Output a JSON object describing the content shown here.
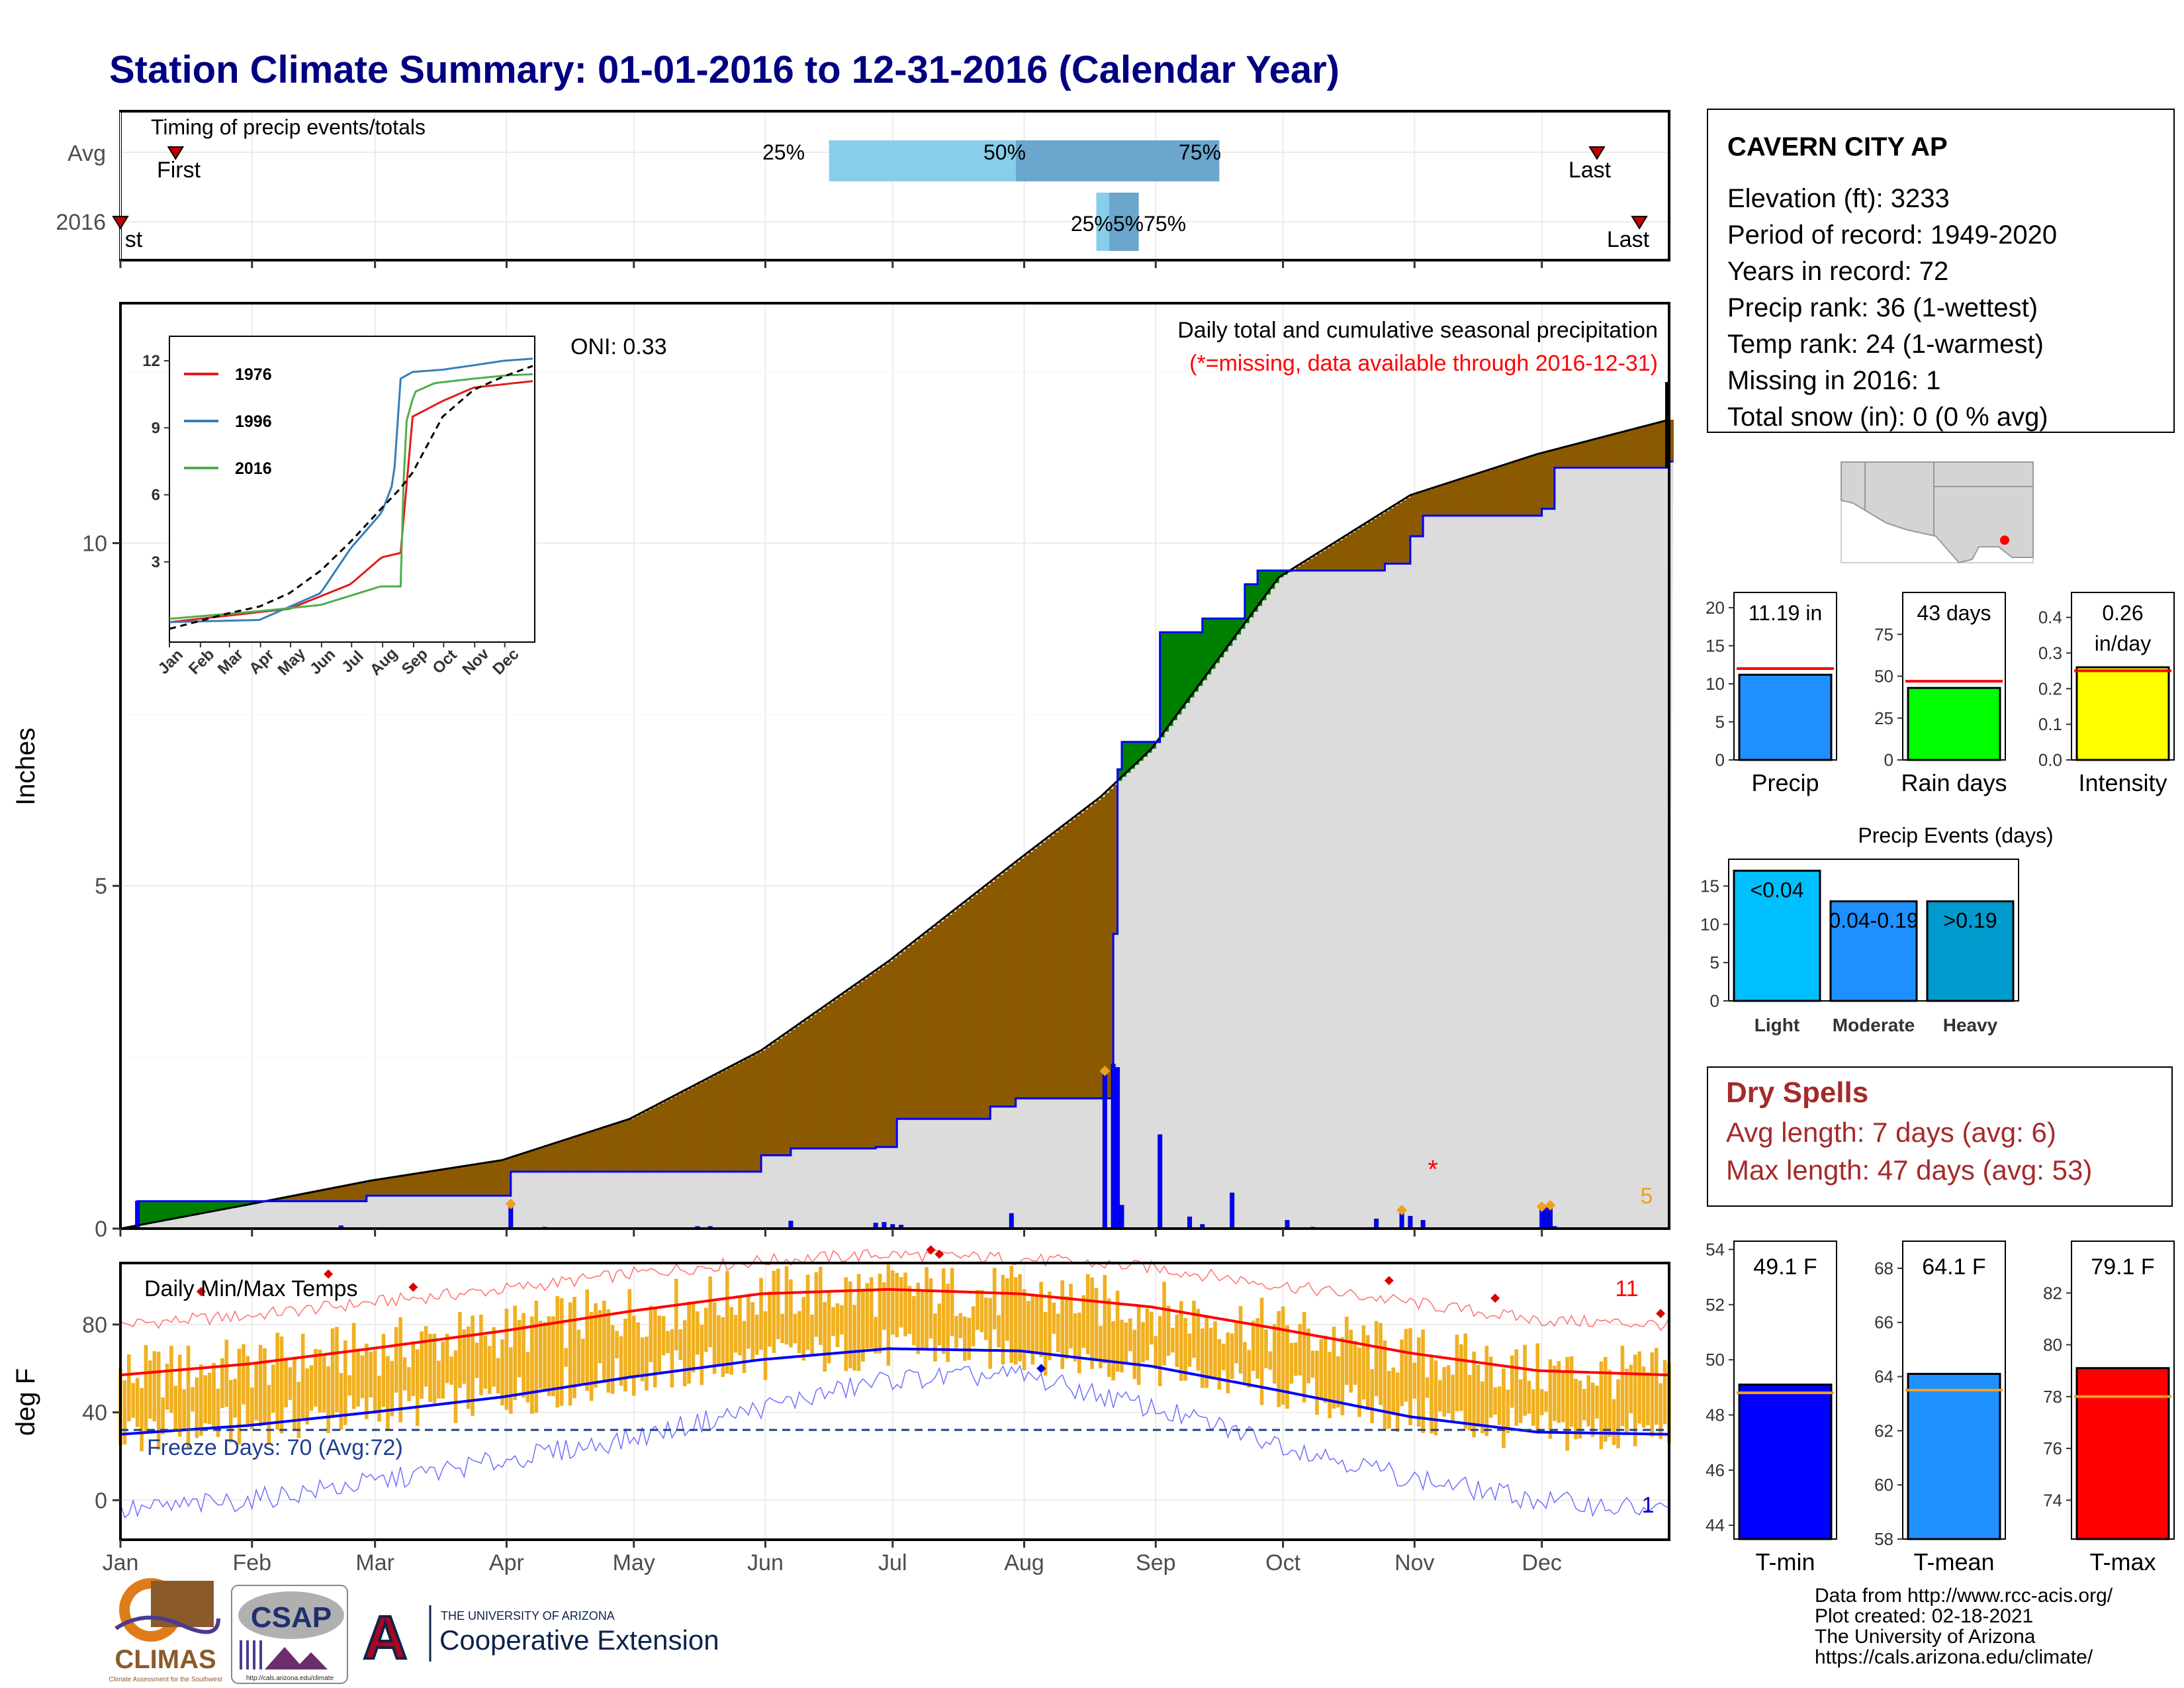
{
  "title": "Station Climate Summary: 01-01-2016 to 12-31-2016 (Calendar Year)",
  "colors": {
    "title": "#000080",
    "brown": "#8B5A00",
    "green": "#008000",
    "gray_fill": "#DCDCDC",
    "blue": "#0000FF",
    "red": "#FF0000",
    "orange": "#F0B020",
    "light_blue": "#87CEEB",
    "mid_blue": "#6BA6CD",
    "yellow": "#FFFF00",
    "lime": "#00FF00",
    "precip_bar": "#1E90FF",
    "dry_spell": "#A52A2A",
    "tmean": "#1E90FF",
    "deep_sky": "#00BFFF",
    "heavy": "#009ACD"
  },
  "timing_panel": {
    "label": "Timing of precip events/totals",
    "rows": [
      "Avg",
      "2016"
    ],
    "avg": {
      "q25_label": "25%",
      "q50_label": "50%",
      "q75_label": "75%",
      "q25_day": 168,
      "q50_day": 212,
      "q75_day": 260,
      "first_label": "First",
      "first_day": 14,
      "last_label": "Last",
      "last_day": 349
    },
    "y2016": {
      "overlap_label": "25%5%75%",
      "q25_day": 231,
      "q50_day": 234,
      "q75_day": 241,
      "first_label": "st",
      "first_day": 1,
      "last_label": "Last",
      "last_day": 359
    }
  },
  "main_panel": {
    "ylabel": "Inches",
    "header": "Daily total and cumulative seasonal precipitation",
    "missing_note": "(*=missing, data available through 2016-12-31)",
    "oni": "ONI: 0.33",
    "missing_marker": "*",
    "corner_count": "5",
    "inset": {
      "legend": [
        "1976",
        "1996",
        "2016"
      ],
      "colors": [
        "#E41A1C",
        "#377EB8",
        "#4DAF4A"
      ],
      "yticks": [
        "3",
        "6",
        "9",
        "12"
      ],
      "xticks": [
        "Jan",
        "Feb",
        "Mar",
        "Apr",
        "May",
        "Jun",
        "Jul",
        "Aug",
        "Sep",
        "Oct",
        "Nov",
        "Dec"
      ]
    }
  },
  "temp_panel": {
    "header": "Daily Min/Max Temps",
    "ylabel": "deg F",
    "freeze_note": "Freeze Days: 70 (Avg:72)",
    "count_top": "11",
    "count_bottom": "1"
  },
  "months": [
    "Jan",
    "Feb",
    "Mar",
    "Apr",
    "May",
    "Jun",
    "Jul",
    "Aug",
    "Sep",
    "Oct",
    "Nov",
    "Dec"
  ],
  "station": {
    "name": "CAVERN CITY AP",
    "lines": [
      "Elevation (ft): 3233",
      "Period of record: 1949-2020",
      "Years in record: 72",
      "Precip rank: 36 (1-wettest)",
      "Temp rank: 24 (1-warmest)",
      "Missing in 2016: 1",
      "Total snow (in): 0 (0 % avg)"
    ]
  },
  "mini_bars": [
    {
      "label": "Precip",
      "value_text": "11.19 in",
      "value": 11.19,
      "avg": 12.0,
      "ymax": 22,
      "ticks": [
        "0",
        "5",
        "10",
        "15",
        "20"
      ],
      "tick_vals": [
        0,
        5,
        10,
        15,
        20
      ],
      "color": "#1E90FF"
    },
    {
      "label": "Rain days",
      "value_text": "43 days",
      "value": 43,
      "avg": 47,
      "ymax": 100,
      "ticks": [
        "0",
        "25",
        "50",
        "75"
      ],
      "tick_vals": [
        0,
        25,
        50,
        75
      ],
      "color": "#00FF00"
    },
    {
      "label": "Intensity",
      "value_text": "0.26",
      "value_text2": "in/day",
      "value": 0.26,
      "avg": 0.25,
      "ymax": 0.47,
      "ticks": [
        "0.0",
        "0.1",
        "0.2",
        "0.3",
        "0.4"
      ],
      "tick_vals": [
        0,
        0.1,
        0.2,
        0.3,
        0.4
      ],
      "color": "#FFFF00"
    }
  ],
  "precip_events": {
    "title": "Precip Events (days)",
    "categories": [
      "Light",
      "Moderate",
      "Heavy"
    ],
    "bar_labels": [
      "<0.04",
      "0.04-0.19",
      ">0.19"
    ],
    "values": [
      17,
      13,
      13
    ],
    "colors": [
      "#00BFFF",
      "#1E90FF",
      "#009ACD"
    ],
    "ticks": [
      "0",
      "5",
      "10",
      "15"
    ],
    "tick_vals": [
      0,
      5,
      10,
      15
    ],
    "ymax": 18.5
  },
  "dry_spells": {
    "title": "Dry Spells",
    "avg_length": "Avg length: 7 days (avg: 6)",
    "max_length": "Max length: 47 days (avg: 53)"
  },
  "temp_bars": [
    {
      "label": "T-min",
      "value_text": "49.1 F",
      "value": 49.1,
      "avg": 48.8,
      "ymin": 43.5,
      "ymax": 54.3,
      "ticks": [
        "44",
        "46",
        "48",
        "50",
        "52",
        "54"
      ],
      "tick_vals": [
        44,
        46,
        48,
        50,
        52,
        54
      ],
      "color": "#0000FF"
    },
    {
      "label": "T-mean",
      "value_text": "64.1 F",
      "value": 64.1,
      "avg": 63.5,
      "ymin": 58,
      "ymax": 69,
      "ticks": [
        "58",
        "60",
        "62",
        "64",
        "66",
        "68"
      ],
      "tick_vals": [
        58,
        60,
        62,
        64,
        66,
        68
      ],
      "color": "#1E90FF"
    },
    {
      "label": "T-max",
      "value_text": "79.1 F",
      "value": 79.1,
      "avg": 78.0,
      "ymin": 72.5,
      "ymax": 84,
      "ticks": [
        "74",
        "76",
        "78",
        "80",
        "82"
      ],
      "tick_vals": [
        74,
        76,
        78,
        80,
        82
      ],
      "color": "#FF0000"
    }
  ],
  "footer": {
    "credits": [
      "Data from http://www.rcc-acis.org/",
      "Plot created: 02-18-2021",
      "The University of Arizona",
      "https://cals.arizona.edu/climate/"
    ],
    "climas": "CLIMAS",
    "climas_sub": "Climate Assessment for the Southwest",
    "csap": "CSAP",
    "csap_url": "http://cals.arizona.edu/climate",
    "ua_logo": "A",
    "ua_small": "THE UNIVERSITY OF ARIZONA",
    "ua_ext": "Cooperative Extension"
  },
  "chart_data": [
    {
      "type": "area",
      "title": "Daily total and cumulative seasonal precipitation",
      "ylabel": "Inches",
      "ylim": [
        0,
        13.5
      ],
      "xlim_days": [
        1,
        366
      ],
      "avg_cumulative": {
        "day": [
          1,
          31,
          60,
          91,
          121,
          152,
          182,
          213,
          232,
          244,
          274,
          305,
          335,
          366
        ],
        "in": [
          0,
          0.35,
          0.7,
          1.0,
          1.6,
          2.6,
          3.9,
          5.4,
          6.3,
          7.0,
          9.5,
          10.7,
          11.3,
          11.8
        ]
      },
      "cumulative_2016": {
        "day": [
          1,
          5,
          38,
          59,
          93,
          152,
          159,
          179,
          184,
          206,
          212,
          233,
          235,
          236,
          237,
          246,
          256,
          266,
          269,
          299,
          305,
          308,
          336,
          339,
          366
        ],
        "in": [
          0,
          0.4,
          0.4,
          0.48,
          0.83,
          1.07,
          1.17,
          1.19,
          1.6,
          1.78,
          1.9,
          1.9,
          4.3,
          6.7,
          7.1,
          8.7,
          8.9,
          9.4,
          9.6,
          9.7,
          10.1,
          10.4,
          10.5,
          11.1,
          11.19
        ]
      },
      "daily_2016": {
        "day": [
          5,
          53,
          93,
          101,
          137,
          140,
          159,
          179,
          181,
          183,
          185,
          211,
          233,
          235,
          236,
          237,
          246,
          253,
          256,
          263,
          276,
          282,
          297,
          303,
          305,
          308,
          336,
          337,
          338,
          339
        ],
        "in": [
          0.4,
          0.04,
          0.36,
          0.02,
          0.03,
          0.03,
          0.11,
          0.08,
          0.09,
          0.06,
          0.05,
          0.22,
          2.3,
          2.4,
          2.35,
          0.34,
          1.37,
          0.17,
          0.06,
          0.52,
          0.12,
          0.02,
          0.14,
          0.27,
          0.18,
          0.12,
          0.32,
          0.34,
          0.3,
          0.03
        ]
      },
      "series": [
        {
          "name": "1976"
        },
        {
          "name": "1996"
        },
        {
          "name": "2016"
        }
      ]
    },
    {
      "type": "line",
      "title": "Daily Min/Max Temps",
      "ylabel": "deg F",
      "ylim": [
        -18,
        108
      ],
      "yticks": [
        0,
        40,
        80
      ],
      "freeze_line": 32,
      "normal_tmax": {
        "day": [
          1,
          31,
          60,
          91,
          121,
          152,
          182,
          213,
          244,
          274,
          305,
          335,
          366
        ],
        "F": [
          57,
          62,
          69,
          77,
          86,
          94,
          96,
          94,
          88,
          78,
          67,
          59,
          57
        ]
      },
      "normal_tmin": {
        "day": [
          1,
          31,
          60,
          91,
          121,
          152,
          182,
          213,
          244,
          274,
          305,
          335,
          366
        ],
        "F": [
          30,
          34,
          40,
          47,
          56,
          64,
          69,
          68,
          61,
          50,
          38,
          31,
          30
        ]
      },
      "record_high": {
        "day": [
          1,
          31,
          60,
          91,
          121,
          152,
          182,
          213,
          244,
          274,
          305,
          335,
          366
        ],
        "F": [
          80,
          84,
          90,
          96,
          103,
          109,
          112,
          110,
          106,
          98,
          90,
          82,
          80
        ]
      },
      "record_low": {
        "day": [
          1,
          31,
          60,
          91,
          121,
          152,
          182,
          213,
          244,
          274,
          305,
          335,
          366
        ],
        "F": [
          -5,
          0,
          8,
          18,
          28,
          42,
          55,
          57,
          42,
          26,
          10,
          0,
          -5
        ]
      }
    }
  ]
}
